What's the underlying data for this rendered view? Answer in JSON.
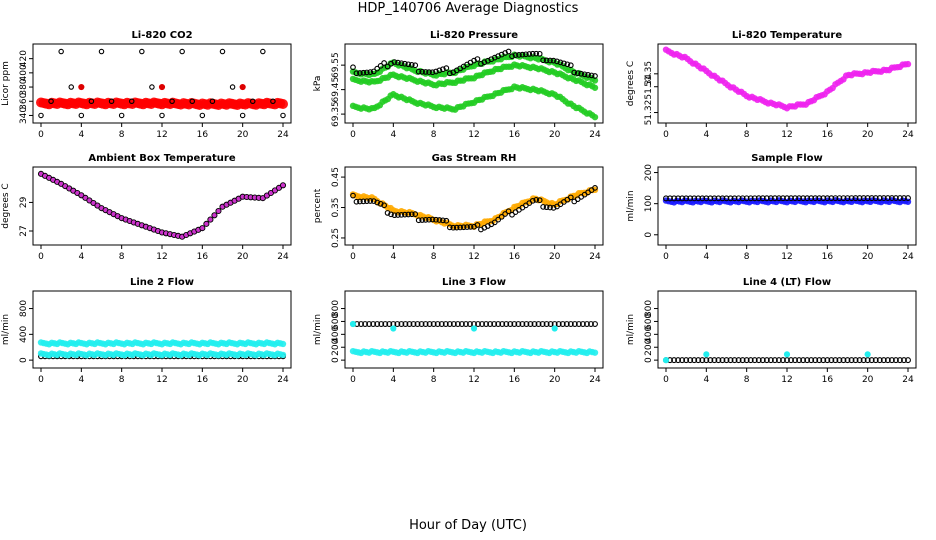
{
  "title": "HDP_140706  Average Diagnostics",
  "xlabel": "Hour of Day (UTC)",
  "chart_data": [
    {
      "type": "scatter",
      "title": "Li-820 CO2",
      "ylabel": "Licor ppm",
      "xlim": [
        0,
        24
      ],
      "ylim": [
        335,
        435
      ],
      "yticks": [
        340,
        360,
        380,
        400,
        420
      ],
      "xticks": [
        0,
        4,
        8,
        12,
        16,
        20,
        24
      ],
      "series": [
        {
          "name": "sample",
          "style": "red-band",
          "color": "#ff0000",
          "x": [
            0,
            4,
            8,
            12,
            16,
            20,
            24
          ],
          "y": [
            357,
            357,
            357,
            357,
            356,
            356,
            357
          ]
        },
        {
          "name": "line-1",
          "style": "open-circle",
          "color": "#000000",
          "x": [
            0,
            1,
            2,
            3,
            4,
            5,
            6,
            7,
            8,
            9,
            10,
            11,
            12,
            13,
            14,
            15,
            16,
            17,
            18,
            19,
            20,
            21,
            22,
            23,
            24
          ],
          "y": [
            340,
            360,
            430,
            380,
            340,
            360,
            430,
            360,
            340,
            360,
            430,
            380,
            340,
            360,
            430,
            360,
            340,
            360,
            430,
            380,
            340,
            360,
            430,
            360,
            340
          ]
        },
        {
          "name": "ref-marks",
          "style": "red-dot",
          "color": "#dd0000",
          "x": [
            4,
            12,
            20
          ],
          "y": [
            380,
            380,
            380
          ]
        }
      ]
    },
    {
      "type": "scatter",
      "title": "Li-820 Pressure",
      "ylabel": "kPa",
      "xlim": [
        0,
        24
      ],
      "ylim": [
        69.33,
        69.62
      ],
      "yticks": [
        69.35,
        69.45,
        69.55
      ],
      "xticks": [
        0,
        4,
        8,
        12,
        16,
        20,
        24
      ],
      "series": [
        {
          "name": "upper",
          "style": "green-band",
          "color": "#22cc22",
          "x": [
            0,
            2,
            4,
            6,
            8,
            10,
            12,
            14,
            16,
            18,
            20,
            22,
            24
          ],
          "y": [
            69.52,
            69.51,
            69.56,
            69.53,
            69.51,
            69.52,
            69.55,
            69.57,
            69.59,
            69.58,
            69.56,
            69.52,
            69.49
          ]
        },
        {
          "name": "middle",
          "style": "green-band",
          "color": "#22cc22",
          "x": [
            0,
            2,
            4,
            6,
            8,
            10,
            12,
            14,
            16,
            18,
            20,
            22,
            24
          ],
          "y": [
            69.49,
            69.48,
            69.51,
            69.49,
            69.47,
            69.48,
            69.5,
            69.53,
            69.55,
            69.54,
            69.52,
            69.49,
            69.46
          ]
        },
        {
          "name": "lower",
          "style": "green-band",
          "color": "#22cc22",
          "x": [
            0,
            2,
            4,
            6,
            8,
            10,
            12,
            14,
            16,
            18,
            20,
            22,
            24
          ],
          "y": [
            69.38,
            69.37,
            69.43,
            69.4,
            69.38,
            69.37,
            69.4,
            69.43,
            69.46,
            69.45,
            69.43,
            69.38,
            69.34
          ]
        },
        {
          "name": "sample",
          "style": "open-circle",
          "color": "#000000",
          "x": [
            0,
            2,
            4,
            6,
            8,
            10,
            12,
            14,
            16,
            18,
            20,
            22,
            24
          ],
          "y": [
            69.53,
            69.52,
            69.57,
            69.54,
            69.52,
            69.53,
            69.56,
            69.58,
            69.6,
            69.59,
            69.57,
            69.53,
            69.5
          ]
        }
      ]
    },
    {
      "type": "scatter",
      "title": "Li-820 Temperature",
      "ylabel": "degrees C",
      "xlim": [
        0,
        24
      ],
      "ylim": [
        51.315,
        51.37
      ],
      "yticks": [
        51.32,
        51.34,
        51.35
      ],
      "xticks": [
        0,
        4,
        8,
        12,
        16,
        20,
        24
      ],
      "series": [
        {
          "name": "sample",
          "style": "magenta-band",
          "color": "#ee22ee",
          "x": [
            0,
            2,
            4,
            6,
            8,
            10,
            12,
            14,
            16,
            18,
            20,
            22,
            24
          ],
          "y": [
            51.368,
            51.362,
            51.352,
            51.342,
            51.333,
            51.328,
            51.324,
            51.327,
            51.336,
            51.349,
            51.351,
            51.353,
            51.358
          ]
        }
      ]
    },
    {
      "type": "scatter",
      "title": "Ambient Box Temperature",
      "ylabel": "degrees C",
      "xlim": [
        0,
        24
      ],
      "ylim": [
        26.3,
        31.2
      ],
      "yticks": [
        27,
        29
      ],
      "xticks": [
        0,
        4,
        8,
        12,
        16,
        20,
        24
      ],
      "series": [
        {
          "name": "sample",
          "style": "magenta-circle",
          "color": "#cc33cc",
          "x": [
            0,
            2,
            4,
            6,
            8,
            10,
            12,
            14,
            16,
            18,
            20,
            22,
            24
          ],
          "y": [
            31.0,
            30.3,
            29.5,
            28.6,
            27.9,
            27.4,
            26.9,
            26.6,
            27.2,
            28.7,
            29.4,
            29.3,
            30.2
          ]
        }
      ]
    },
    {
      "type": "scatter",
      "title": "Gas Stream RH",
      "ylabel": "percent",
      "xlim": [
        0,
        24
      ],
      "ylim": [
        0.24,
        0.47
      ],
      "yticks": [
        0.25,
        0.35,
        0.45
      ],
      "xticks": [
        0,
        4,
        8,
        12,
        16,
        20,
        24
      ],
      "series": [
        {
          "name": "spread",
          "style": "orange-band",
          "color": "#ffaa00",
          "x": [
            0,
            2,
            4,
            6,
            8,
            10,
            12,
            14,
            16,
            18,
            20,
            22,
            24
          ],
          "y": [
            0.39,
            0.38,
            0.34,
            0.33,
            0.31,
            0.29,
            0.29,
            0.31,
            0.35,
            0.38,
            0.36,
            0.39,
            0.41
          ]
        },
        {
          "name": "sample",
          "style": "open-circle",
          "color": "#000000",
          "x": [
            0,
            2,
            4,
            6,
            8,
            10,
            12,
            14,
            16,
            18,
            20,
            22,
            24
          ],
          "y": [
            0.38,
            0.37,
            0.33,
            0.32,
            0.31,
            0.29,
            0.28,
            0.3,
            0.34,
            0.37,
            0.35,
            0.38,
            0.41
          ]
        }
      ]
    },
    {
      "type": "scatter",
      "title": "Sample Flow",
      "ylabel": "ml/min",
      "xlim": [
        0,
        24
      ],
      "ylim": [
        -20,
        205
      ],
      "yticks": [
        0,
        100,
        200
      ],
      "xticks": [
        0,
        4,
        8,
        12,
        16,
        20,
        24
      ],
      "series": [
        {
          "name": "flow",
          "style": "blue-band",
          "color": "#1a1aff",
          "x": [
            0,
            24
          ],
          "y": [
            107,
            108
          ]
        },
        {
          "name": "sample",
          "style": "open-circle",
          "color": "#000000",
          "x": [
            0,
            24
          ],
          "y": [
            117,
            118
          ]
        }
      ]
    },
    {
      "type": "scatter",
      "title": "Line 2 Flow",
      "ylabel": "ml/min",
      "xlim": [
        0,
        24
      ],
      "ylim": [
        -60,
        1010
      ],
      "yticks": [
        0,
        400,
        800
      ],
      "xticks": [
        0,
        4,
        8,
        12,
        16,
        20,
        24
      ],
      "series": [
        {
          "name": "line-2",
          "style": "cyan-band",
          "color": "#22eeee",
          "x": [
            0,
            24
          ],
          "y": [
            260,
            260
          ]
        },
        {
          "name": "sample",
          "style": "open-circle",
          "color": "#000000",
          "x": [
            0,
            24
          ],
          "y": [
            60,
            60
          ]
        },
        {
          "name": "cyan-pts",
          "style": "cyan-band",
          "color": "#22eeee",
          "x": [
            0,
            24
          ],
          "y": [
            90,
            90
          ]
        }
      ]
    },
    {
      "type": "scatter",
      "title": "Line 3 Flow",
      "ylabel": "ml/min",
      "xlim": [
        0,
        24
      ],
      "ylim": [
        -60,
        1010
      ],
      "yticks": [
        0,
        200,
        400,
        600,
        800
      ],
      "xticks": [
        0,
        4,
        8,
        12,
        16,
        20,
        24
      ],
      "series": [
        {
          "name": "sample",
          "style": "open-circle",
          "color": "#000000",
          "x": [
            0,
            24
          ],
          "y": [
            560,
            560
          ]
        },
        {
          "name": "line-3",
          "style": "cyan-band",
          "color": "#22eeee",
          "x": [
            0,
            24
          ],
          "y": [
            125,
            125
          ]
        },
        {
          "name": "spikes",
          "style": "cyan-dot",
          "color": "#22eeee",
          "x": [
            0,
            4,
            12,
            20
          ],
          "y": [
            560,
            490,
            490,
            490
          ]
        }
      ]
    },
    {
      "type": "scatter",
      "title": "Line 4 (LT) Flow",
      "ylabel": "ml/min",
      "xlim": [
        0,
        24
      ],
      "ylim": [
        -60,
        1010
      ],
      "yticks": [
        0,
        200,
        400,
        600,
        800
      ],
      "xticks": [
        0,
        4,
        8,
        12,
        16,
        20,
        24
      ],
      "series": [
        {
          "name": "sample",
          "style": "open-circle",
          "color": "#000000",
          "x": [
            0,
            24
          ],
          "y": [
            0,
            0
          ]
        },
        {
          "name": "spikes",
          "style": "cyan-dot",
          "color": "#22eeee",
          "x": [
            0,
            4,
            12,
            20
          ],
          "y": [
            0,
            90,
            90,
            90
          ]
        }
      ]
    }
  ]
}
